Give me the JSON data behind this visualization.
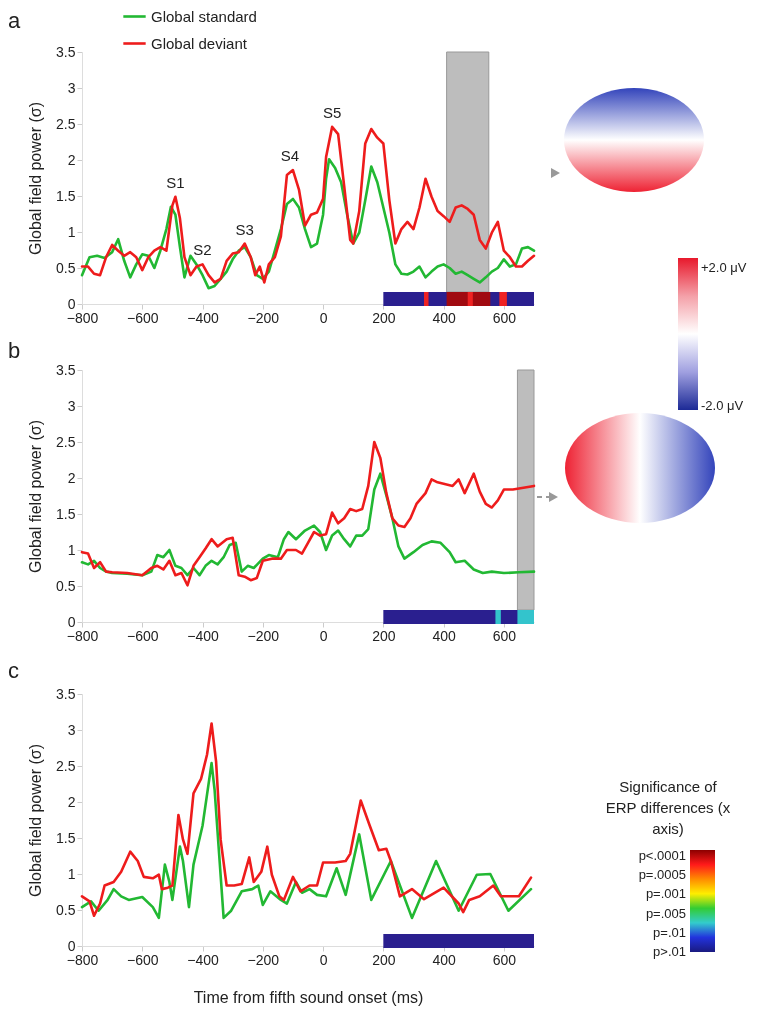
{
  "chart_data": [
    {
      "type": "line",
      "title": "a",
      "ylabel": "Global field power (σ)",
      "xlim": [
        -800,
        700
      ],
      "xticks": [
        -800,
        -600,
        -400,
        -200,
        0,
        200,
        400,
        600
      ],
      "ylim": [
        0,
        3.5
      ],
      "yticks": [
        0,
        0.5,
        1,
        1.5,
        2,
        2.5,
        3,
        3.5
      ],
      "legend": "top left",
      "series": [
        {
          "name": "Global standard",
          "color": "#22b833",
          "x": [
            -800,
            -775,
            -750,
            -725,
            -700,
            -680,
            -660,
            -640,
            -620,
            -600,
            -580,
            -560,
            -540,
            -520,
            -505,
            -490,
            -475,
            -460,
            -440,
            -420,
            -400,
            -380,
            -360,
            -340,
            -320,
            -300,
            -280,
            -260,
            -240,
            -220,
            -200,
            -180,
            -160,
            -140,
            -120,
            -100,
            -80,
            -60,
            -40,
            -20,
            0,
            10,
            20,
            40,
            60,
            80,
            100,
            120,
            140,
            160,
            180,
            200,
            220,
            240,
            260,
            280,
            300,
            320,
            340,
            360,
            380,
            400,
            420,
            440,
            460,
            480,
            500,
            520,
            540,
            560,
            580,
            600,
            620,
            640,
            660,
            680,
            700
          ],
          "values": [
            0.4,
            0.65,
            0.67,
            0.64,
            0.72,
            0.9,
            0.6,
            0.37,
            0.55,
            0.69,
            0.67,
            0.5,
            0.74,
            1.04,
            1.35,
            1.24,
            0.79,
            0.37,
            0.67,
            0.55,
            0.4,
            0.22,
            0.25,
            0.35,
            0.45,
            0.62,
            0.74,
            0.79,
            0.65,
            0.4,
            0.35,
            0.45,
            0.74,
            1.04,
            1.39,
            1.46,
            1.34,
            1.04,
            0.79,
            0.84,
            1.24,
            1.74,
            2.01,
            1.89,
            1.69,
            1.24,
            0.84,
            0.99,
            1.44,
            1.91,
            1.69,
            1.34,
            0.99,
            0.55,
            0.42,
            0.41,
            0.45,
            0.52,
            0.37,
            0.45,
            0.52,
            0.55,
            0.5,
            0.42,
            0.45,
            0.4,
            0.35,
            0.3,
            0.37,
            0.45,
            0.5,
            0.62,
            0.52,
            0.55,
            0.77,
            0.79,
            0.74
          ]
        },
        {
          "name": "Global deviant",
          "color": "#ee1c1c",
          "x": [
            -800,
            -780,
            -760,
            -740,
            -720,
            -700,
            -680,
            -660,
            -640,
            -620,
            -600,
            -580,
            -560,
            -540,
            -520,
            -500,
            -490,
            -475,
            -460,
            -440,
            -420,
            -400,
            -380,
            -360,
            -340,
            -320,
            -300,
            -280,
            -260,
            -240,
            -225,
            -210,
            -195,
            -180,
            -160,
            -140,
            -120,
            -100,
            -80,
            -60,
            -40,
            -20,
            0,
            10,
            30,
            50,
            70,
            90,
            100,
            120,
            140,
            160,
            180,
            200,
            220,
            240,
            260,
            280,
            300,
            320,
            340,
            360,
            380,
            400,
            420,
            440,
            460,
            480,
            500,
            520,
            540,
            560,
            580,
            600,
            620,
            640,
            660,
            680,
            700
          ],
          "values": [
            0.52,
            0.52,
            0.42,
            0.4,
            0.65,
            0.82,
            0.74,
            0.67,
            0.72,
            0.65,
            0.47,
            0.65,
            0.74,
            0.79,
            0.74,
            1.37,
            1.49,
            1.19,
            0.65,
            0.4,
            0.52,
            0.55,
            0.4,
            0.3,
            0.35,
            0.6,
            0.7,
            0.72,
            0.84,
            0.65,
            0.4,
            0.52,
            0.3,
            0.55,
            0.65,
            0.94,
            1.79,
            1.86,
            1.59,
            1.09,
            1.24,
            1.27,
            1.46,
            2.04,
            2.46,
            2.36,
            1.64,
            0.89,
            0.84,
            1.29,
            2.23,
            2.43,
            2.31,
            2.23,
            1.44,
            0.84,
            1.04,
            1.14,
            1.04,
            1.34,
            1.74,
            1.49,
            1.29,
            1.22,
            1.14,
            1.34,
            1.37,
            1.32,
            1.24,
            0.89,
            0.77,
            0.99,
            1.14,
            0.74,
            0.65,
            0.52,
            0.52,
            0.6,
            0.67
          ]
        }
      ],
      "bands": [
        {
          "axis": "x",
          "from": 410,
          "to": 550
        },
        {
          "axis": "x",
          "from": 200,
          "to": 700,
          "color": "#2a1f8f"
        },
        {
          "axis": "x",
          "from": 335,
          "to": 350,
          "color": "#ee2222"
        },
        {
          "axis": "x",
          "from": 410,
          "to": 555,
          "color": "#a00a10"
        },
        {
          "axis": "x",
          "from": 480,
          "to": 497,
          "color": "#ee2222"
        },
        {
          "axis": "x",
          "from": 585,
          "to": 610,
          "color": "#ee2222"
        }
      ],
      "annotations": [
        {
          "text": "S1",
          "x": -490,
          "y": 1.49
        },
        {
          "text": "S2",
          "x": -400,
          "y": 0.55
        },
        {
          "text": "S3",
          "x": -260,
          "y": 0.84
        },
        {
          "text": "S4",
          "x": -110,
          "y": 1.86
        },
        {
          "text": "S5",
          "x": 30,
          "y": 2.46
        },
        "+2.0 μV",
        "-2.0 μV"
      ]
    },
    {
      "type": "line",
      "title": "b",
      "ylabel": "Global field power (σ)",
      "xlim": [
        -800,
        700
      ],
      "xticks": [
        -800,
        -600,
        -400,
        -200,
        0,
        200,
        400,
        600
      ],
      "ylim": [
        0,
        3.5
      ],
      "yticks": [
        0,
        0.5,
        1,
        1.5,
        2,
        2.5,
        3,
        3.5
      ],
      "series": [
        {
          "color": "#22b833",
          "x": [
            -800,
            -780,
            -760,
            -740,
            -720,
            -700,
            -650,
            -600,
            -570,
            -550,
            -530,
            -510,
            -490,
            -470,
            -450,
            -430,
            -410,
            -390,
            -370,
            -350,
            -330,
            -310,
            -290,
            -270,
            -250,
            -230,
            -200,
            -180,
            -150,
            -130,
            -115,
            -90,
            -60,
            -30,
            -10,
            10,
            30,
            50,
            70,
            90,
            110,
            130,
            150,
            170,
            190,
            210,
            230,
            250,
            270,
            300,
            330,
            360,
            390,
            420,
            440,
            470,
            500,
            530,
            560,
            600,
            650,
            700
          ],
          "values": [
            0.83,
            0.8,
            0.85,
            0.75,
            0.7,
            0.68,
            0.67,
            0.65,
            0.7,
            0.93,
            0.9,
            1.0,
            0.78,
            0.75,
            0.65,
            0.75,
            0.65,
            0.78,
            0.85,
            0.8,
            0.9,
            1.07,
            1.1,
            0.7,
            0.78,
            0.75,
            0.88,
            0.93,
            0.9,
            1.15,
            1.25,
            1.15,
            1.27,
            1.34,
            1.25,
            1.0,
            1.2,
            1.27,
            1.15,
            1.05,
            1.2,
            1.2,
            1.29,
            1.84,
            2.06,
            1.76,
            1.44,
            1.05,
            0.88,
            0.97,
            1.07,
            1.12,
            1.1,
            0.97,
            0.83,
            0.85,
            0.73,
            0.68,
            0.7,
            0.68,
            0.69,
            0.7
          ]
        },
        {
          "color": "#ee1c1c",
          "x": [
            -800,
            -780,
            -760,
            -740,
            -720,
            -700,
            -650,
            -600,
            -570,
            -550,
            -530,
            -510,
            -490,
            -470,
            -450,
            -430,
            -410,
            -390,
            -370,
            -350,
            -320,
            -300,
            -280,
            -260,
            -240,
            -220,
            -200,
            -170,
            -140,
            -120,
            -90,
            -70,
            -50,
            -30,
            -10,
            10,
            30,
            50,
            70,
            90,
            110,
            130,
            150,
            170,
            190,
            210,
            230,
            250,
            270,
            290,
            310,
            340,
            360,
            380,
            410,
            430,
            450,
            470,
            500,
            520,
            540,
            560,
            580,
            600,
            630,
            660,
            700
          ],
          "values": [
            0.97,
            0.95,
            0.75,
            0.83,
            0.7,
            0.69,
            0.68,
            0.65,
            0.75,
            0.78,
            0.73,
            0.85,
            0.65,
            0.68,
            0.51,
            0.78,
            0.9,
            1.02,
            1.15,
            1.05,
            1.15,
            1.17,
            0.65,
            0.63,
            0.58,
            0.61,
            0.85,
            0.88,
            0.88,
            1.0,
            1.0,
            0.95,
            1.1,
            1.25,
            1.2,
            1.22,
            1.52,
            1.37,
            1.44,
            1.57,
            1.54,
            1.57,
            1.89,
            2.5,
            2.28,
            1.79,
            1.44,
            1.34,
            1.32,
            1.44,
            1.64,
            1.79,
            1.98,
            1.94,
            1.91,
            1.89,
            1.98,
            1.79,
            2.06,
            1.81,
            1.64,
            1.59,
            1.69,
            1.84,
            1.84,
            1.86,
            1.89
          ]
        }
      ],
      "bands": [
        {
          "axis": "x",
          "from": 645,
          "to": 700
        },
        {
          "axis": "x",
          "from": 200,
          "to": 700,
          "color": "#2a1f8f"
        },
        {
          "axis": "x",
          "from": 572,
          "to": 590,
          "color": "#33c4cc"
        },
        {
          "axis": "x",
          "from": 645,
          "to": 700,
          "color": "#33c4cc"
        }
      ]
    },
    {
      "type": "line",
      "title": "c",
      "xlabel": "Time from fifth sound onset (ms)",
      "ylabel": "Global field power (σ)",
      "xlim": [
        -800,
        700
      ],
      "xticks": [
        -800,
        -600,
        -400,
        -200,
        0,
        200,
        400,
        600
      ],
      "ylim": [
        0,
        3.5
      ],
      "yticks": [
        0,
        0.5,
        1,
        1.5,
        2,
        2.5,
        3,
        3.5
      ],
      "series": [
        {
          "color": "#22b833",
          "x": [
            -800,
            -770,
            -745,
            -715,
            -695,
            -670,
            -645,
            -600,
            -565,
            -545,
            -525,
            -510,
            -500,
            -475,
            -465,
            -445,
            -430,
            -400,
            -370,
            -360,
            -345,
            -330,
            -305,
            -270,
            -235,
            -215,
            -200,
            -175,
            -140,
            -120,
            -90,
            -70,
            -45,
            -20,
            10,
            45,
            75,
            120,
            160,
            225,
            295,
            375,
            450,
            510,
            555,
            615,
            690
          ],
          "values": [
            0.54,
            0.62,
            0.49,
            0.64,
            0.79,
            0.69,
            0.64,
            0.68,
            0.54,
            0.39,
            1.13,
            0.89,
            0.64,
            1.38,
            1.18,
            0.54,
            1.13,
            1.67,
            2.54,
            2.17,
            1.28,
            0.39,
            0.49,
            0.76,
            0.79,
            0.84,
            0.57,
            0.76,
            0.64,
            0.59,
            0.89,
            0.74,
            0.79,
            0.71,
            0.69,
            1.08,
            0.71,
            1.55,
            0.64,
            1.18,
            0.39,
            1.18,
            0.49,
            0.99,
            1.0,
            0.49,
            0.79
          ]
        },
        {
          "color": "#ee1c1c",
          "x": [
            -800,
            -775,
            -760,
            -740,
            -725,
            -695,
            -670,
            -640,
            -615,
            -595,
            -565,
            -545,
            -535,
            -515,
            -500,
            -480,
            -465,
            -450,
            -430,
            -405,
            -385,
            -370,
            -355,
            -340,
            -320,
            -295,
            -270,
            -245,
            -230,
            -205,
            -185,
            -170,
            -145,
            -130,
            -100,
            -75,
            -45,
            -20,
            0,
            40,
            75,
            90,
            125,
            155,
            185,
            210,
            225,
            255,
            295,
            335,
            400,
            450,
            465,
            485,
            520,
            565,
            590,
            650,
            690
          ],
          "values": [
            0.69,
            0.62,
            0.42,
            0.59,
            0.84,
            0.89,
            1.03,
            1.31,
            1.18,
            0.96,
            0.94,
            0.99,
            0.79,
            0.81,
            0.84,
            1.82,
            1.48,
            1.28,
            2.12,
            2.32,
            2.66,
            3.09,
            2.56,
            1.48,
            0.84,
            0.84,
            0.86,
            1.23,
            0.89,
            1.03,
            1.38,
            0.99,
            0.69,
            0.64,
            0.96,
            0.76,
            0.84,
            0.84,
            1.16,
            1.16,
            1.18,
            1.28,
            2.02,
            1.67,
            1.33,
            1.35,
            1.18,
            0.69,
            0.79,
            0.65,
            0.81,
            0.59,
            0.47,
            0.64,
            0.69,
            0.84,
            0.69,
            0.69,
            0.95
          ]
        }
      ],
      "bands": [
        {
          "axis": "x",
          "from": 200,
          "to": 700,
          "color": "#2a1f8f"
        }
      ],
      "annotations": [
        "Significance of ERP differences (x axis)",
        "p<.0001",
        "p=.0005",
        "p=.001",
        "p=.005",
        "p=.01",
        "p>.01"
      ]
    }
  ]
}
